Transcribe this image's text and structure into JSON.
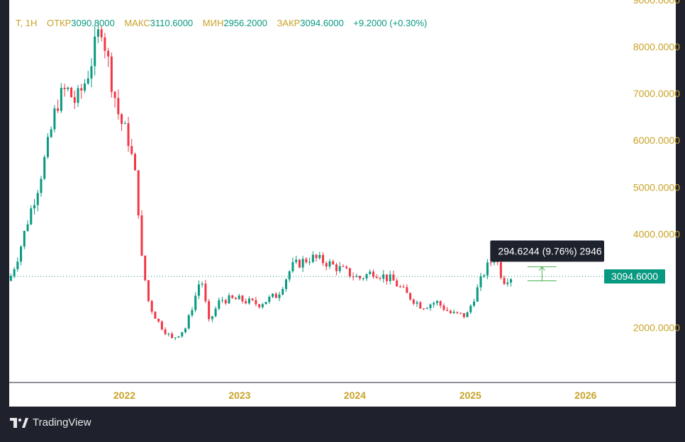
{
  "legend": {
    "symbol": "T, 1H",
    "open_label": "ОТКР",
    "open_value": "3090.8000",
    "high_label": "МАКС",
    "high_value": "3110.6000",
    "low_label": "МИН",
    "low_value": "2956.2000",
    "close_label": "ЗАКР",
    "close_value": "3094.6000",
    "change": "+9.2000 (+0.30%)"
  },
  "brand": {
    "name": "TradingView",
    "icon": "tradingview-logo-icon"
  },
  "measure": {
    "label": "294.6244 (9.76%) 2946",
    "from_price": 3000,
    "to_price": 3300,
    "color": "#4caf50"
  },
  "colors": {
    "up": "#089981",
    "down": "#f23645",
    "accent": "#c9a227",
    "background": "#1f222d",
    "pane": "#ffffff"
  },
  "chart_data": {
    "type": "candlestick",
    "y_axis_position": "right",
    "ylim": [
      1000,
      9000
    ],
    "yticks": [
      {
        "value": 9000,
        "label": "9000.0000"
      },
      {
        "value": 8000,
        "label": "8000.0000"
      },
      {
        "value": 7000,
        "label": "7000.0000"
      },
      {
        "value": 6000,
        "label": "6000.0000"
      },
      {
        "value": 5000,
        "label": "5000.0000"
      },
      {
        "value": 4000,
        "label": "4000.0000"
      },
      {
        "value": 2000,
        "label": "2000.0000"
      }
    ],
    "xlim": [
      "2021-01-01",
      "2026-03-01"
    ],
    "xticks": [
      {
        "value": "2022-01-01",
        "label": "2022"
      },
      {
        "value": "2023-01-01",
        "label": "2023"
      },
      {
        "value": "2024-01-01",
        "label": "2024"
      },
      {
        "value": "2025-01-01",
        "label": "2025"
      },
      {
        "value": "2026-01-01",
        "label": "2026"
      }
    ],
    "last_price": {
      "value": 3094.6,
      "label": "3094.6000"
    },
    "price_path": [
      [
        "2021-01-01",
        3000
      ],
      [
        "2021-02-01",
        3600
      ],
      [
        "2021-03-01",
        4300
      ],
      [
        "2021-04-01",
        5000
      ],
      [
        "2021-05-01",
        5800
      ],
      [
        "2021-06-01",
        6800
      ],
      [
        "2021-07-01",
        7100
      ],
      [
        "2021-08-01",
        6800
      ],
      [
        "2021-09-01",
        7300
      ],
      [
        "2021-10-01",
        8000
      ],
      [
        "2021-10-20",
        8500
      ],
      [
        "2021-11-15",
        7500
      ],
      [
        "2021-12-15",
        6500
      ],
      [
        "2022-01-15",
        6000
      ],
      [
        "2022-02-10",
        5000
      ],
      [
        "2022-02-24",
        3500
      ],
      [
        "2022-03-20",
        2500
      ],
      [
        "2022-04-20",
        2100
      ],
      [
        "2022-06-01",
        1750
      ],
      [
        "2022-07-15",
        2000
      ],
      [
        "2022-08-15",
        2700
      ],
      [
        "2022-09-01",
        3100
      ],
      [
        "2022-09-25",
        2100
      ],
      [
        "2022-11-01",
        2600
      ],
      [
        "2023-01-01",
        2600
      ],
      [
        "2023-03-01",
        2500
      ],
      [
        "2023-05-01",
        2700
      ],
      [
        "2023-06-15",
        3300
      ],
      [
        "2023-08-15",
        3500
      ],
      [
        "2023-10-01",
        3400
      ],
      [
        "2023-12-01",
        3200
      ],
      [
        "2024-01-15",
        3050
      ],
      [
        "2024-03-01",
        3200
      ],
      [
        "2024-05-01",
        3000
      ],
      [
        "2024-06-15",
        2700
      ],
      [
        "2024-08-01",
        2450
      ],
      [
        "2024-09-15",
        2550
      ],
      [
        "2024-11-01",
        2300
      ],
      [
        "2024-12-20",
        2250
      ],
      [
        "2025-02-15",
        3200
      ],
      [
        "2025-03-20",
        3550
      ],
      [
        "2025-04-15",
        3000
      ],
      [
        "2025-05-01",
        3080
      ],
      [
        "2025-05-15",
        3094.6
      ]
    ]
  }
}
